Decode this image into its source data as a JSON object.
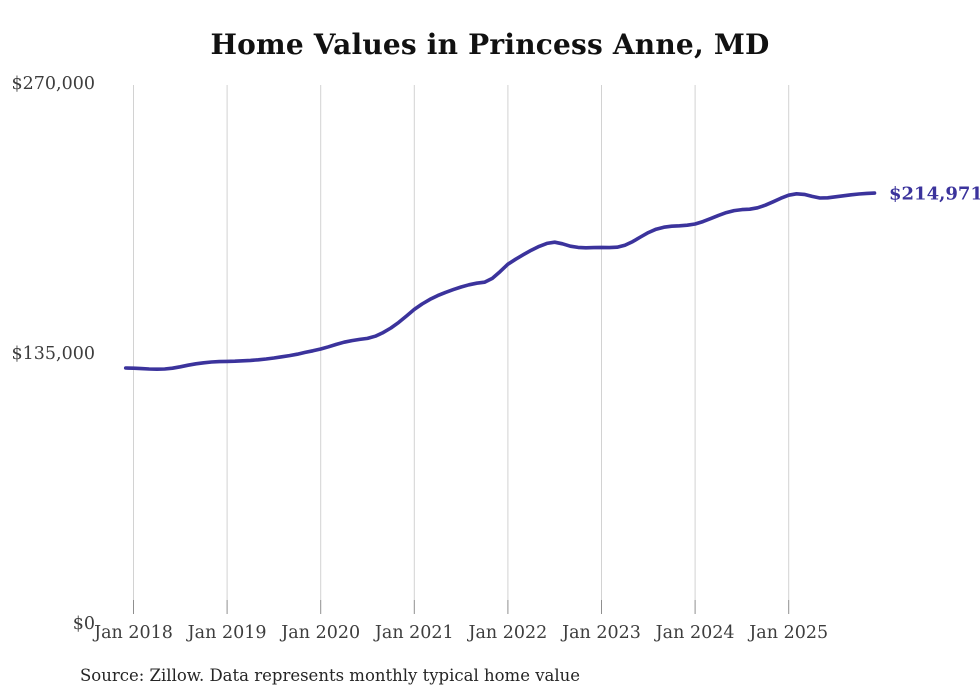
{
  "title": "Home Values in Princess Anne, MD",
  "source_note": "Source: Zillow. Data represents monthly typical home value",
  "end_label": "$214,971",
  "colors": {
    "line": "#3b339c",
    "grid": "#d2d2d2",
    "tick": "#8f8f8f",
    "axis_text": "#3d3d3d",
    "title_text": "#111111",
    "background": "#ffffff"
  },
  "chart_data": {
    "type": "line",
    "title": "Home Values in Princess Anne, MD",
    "xlabel": "",
    "ylabel": "",
    "unit": "USD",
    "frequency": "monthly",
    "start_month": "2017-12",
    "end_month": "2025-12",
    "latest_value": 214971,
    "latest_value_label": "$214,971",
    "grid": "vertical-only",
    "legend": "none",
    "y_axis": {
      "min": 0,
      "max": 270000,
      "ticks": [
        {
          "label": "$0",
          "value": 0
        },
        {
          "label": "$135,000",
          "value": 135000
        },
        {
          "label": "$270,000",
          "value": 270000
        }
      ]
    },
    "x_ticks": [
      {
        "label": "Jan 2018",
        "month_index": 1
      },
      {
        "label": "Jan 2019",
        "month_index": 13
      },
      {
        "label": "Jan 2020",
        "month_index": 25
      },
      {
        "label": "Jan 2021",
        "month_index": 37
      },
      {
        "label": "Jan 2022",
        "month_index": 49
      },
      {
        "label": "Jan 2023",
        "month_index": 61
      },
      {
        "label": "Jan 2024",
        "month_index": 73
      },
      {
        "label": "Jan 2025",
        "month_index": 85
      }
    ],
    "series": [
      {
        "name": "Typical home value",
        "values": [
          127500,
          127400,
          127200,
          127000,
          126900,
          127000,
          127400,
          128100,
          128900,
          129600,
          130100,
          130500,
          130700,
          130800,
          130900,
          131100,
          131300,
          131600,
          132000,
          132500,
          133100,
          133700,
          134400,
          135300,
          136100,
          137000,
          138100,
          139300,
          140400,
          141200,
          141800,
          142300,
          143400,
          145200,
          147500,
          150300,
          153500,
          156800,
          159500,
          161800,
          163700,
          165300,
          166700,
          168000,
          169100,
          169900,
          170400,
          172300,
          175700,
          179400,
          181900,
          184200,
          186400,
          188300,
          189800,
          190400,
          189600,
          188400,
          187800,
          187600,
          187700,
          187800,
          187700,
          187900,
          188900,
          190700,
          193000,
          195200,
          196900,
          197900,
          198400,
          198600,
          198900,
          199500,
          200700,
          202200,
          203800,
          205200,
          206200,
          206700,
          206900,
          207600,
          208900,
          210600,
          212400,
          213900,
          214600,
          214300,
          213300,
          212500,
          212600,
          213100,
          213600,
          214100,
          214500,
          214800,
          214971
        ]
      }
    ]
  }
}
